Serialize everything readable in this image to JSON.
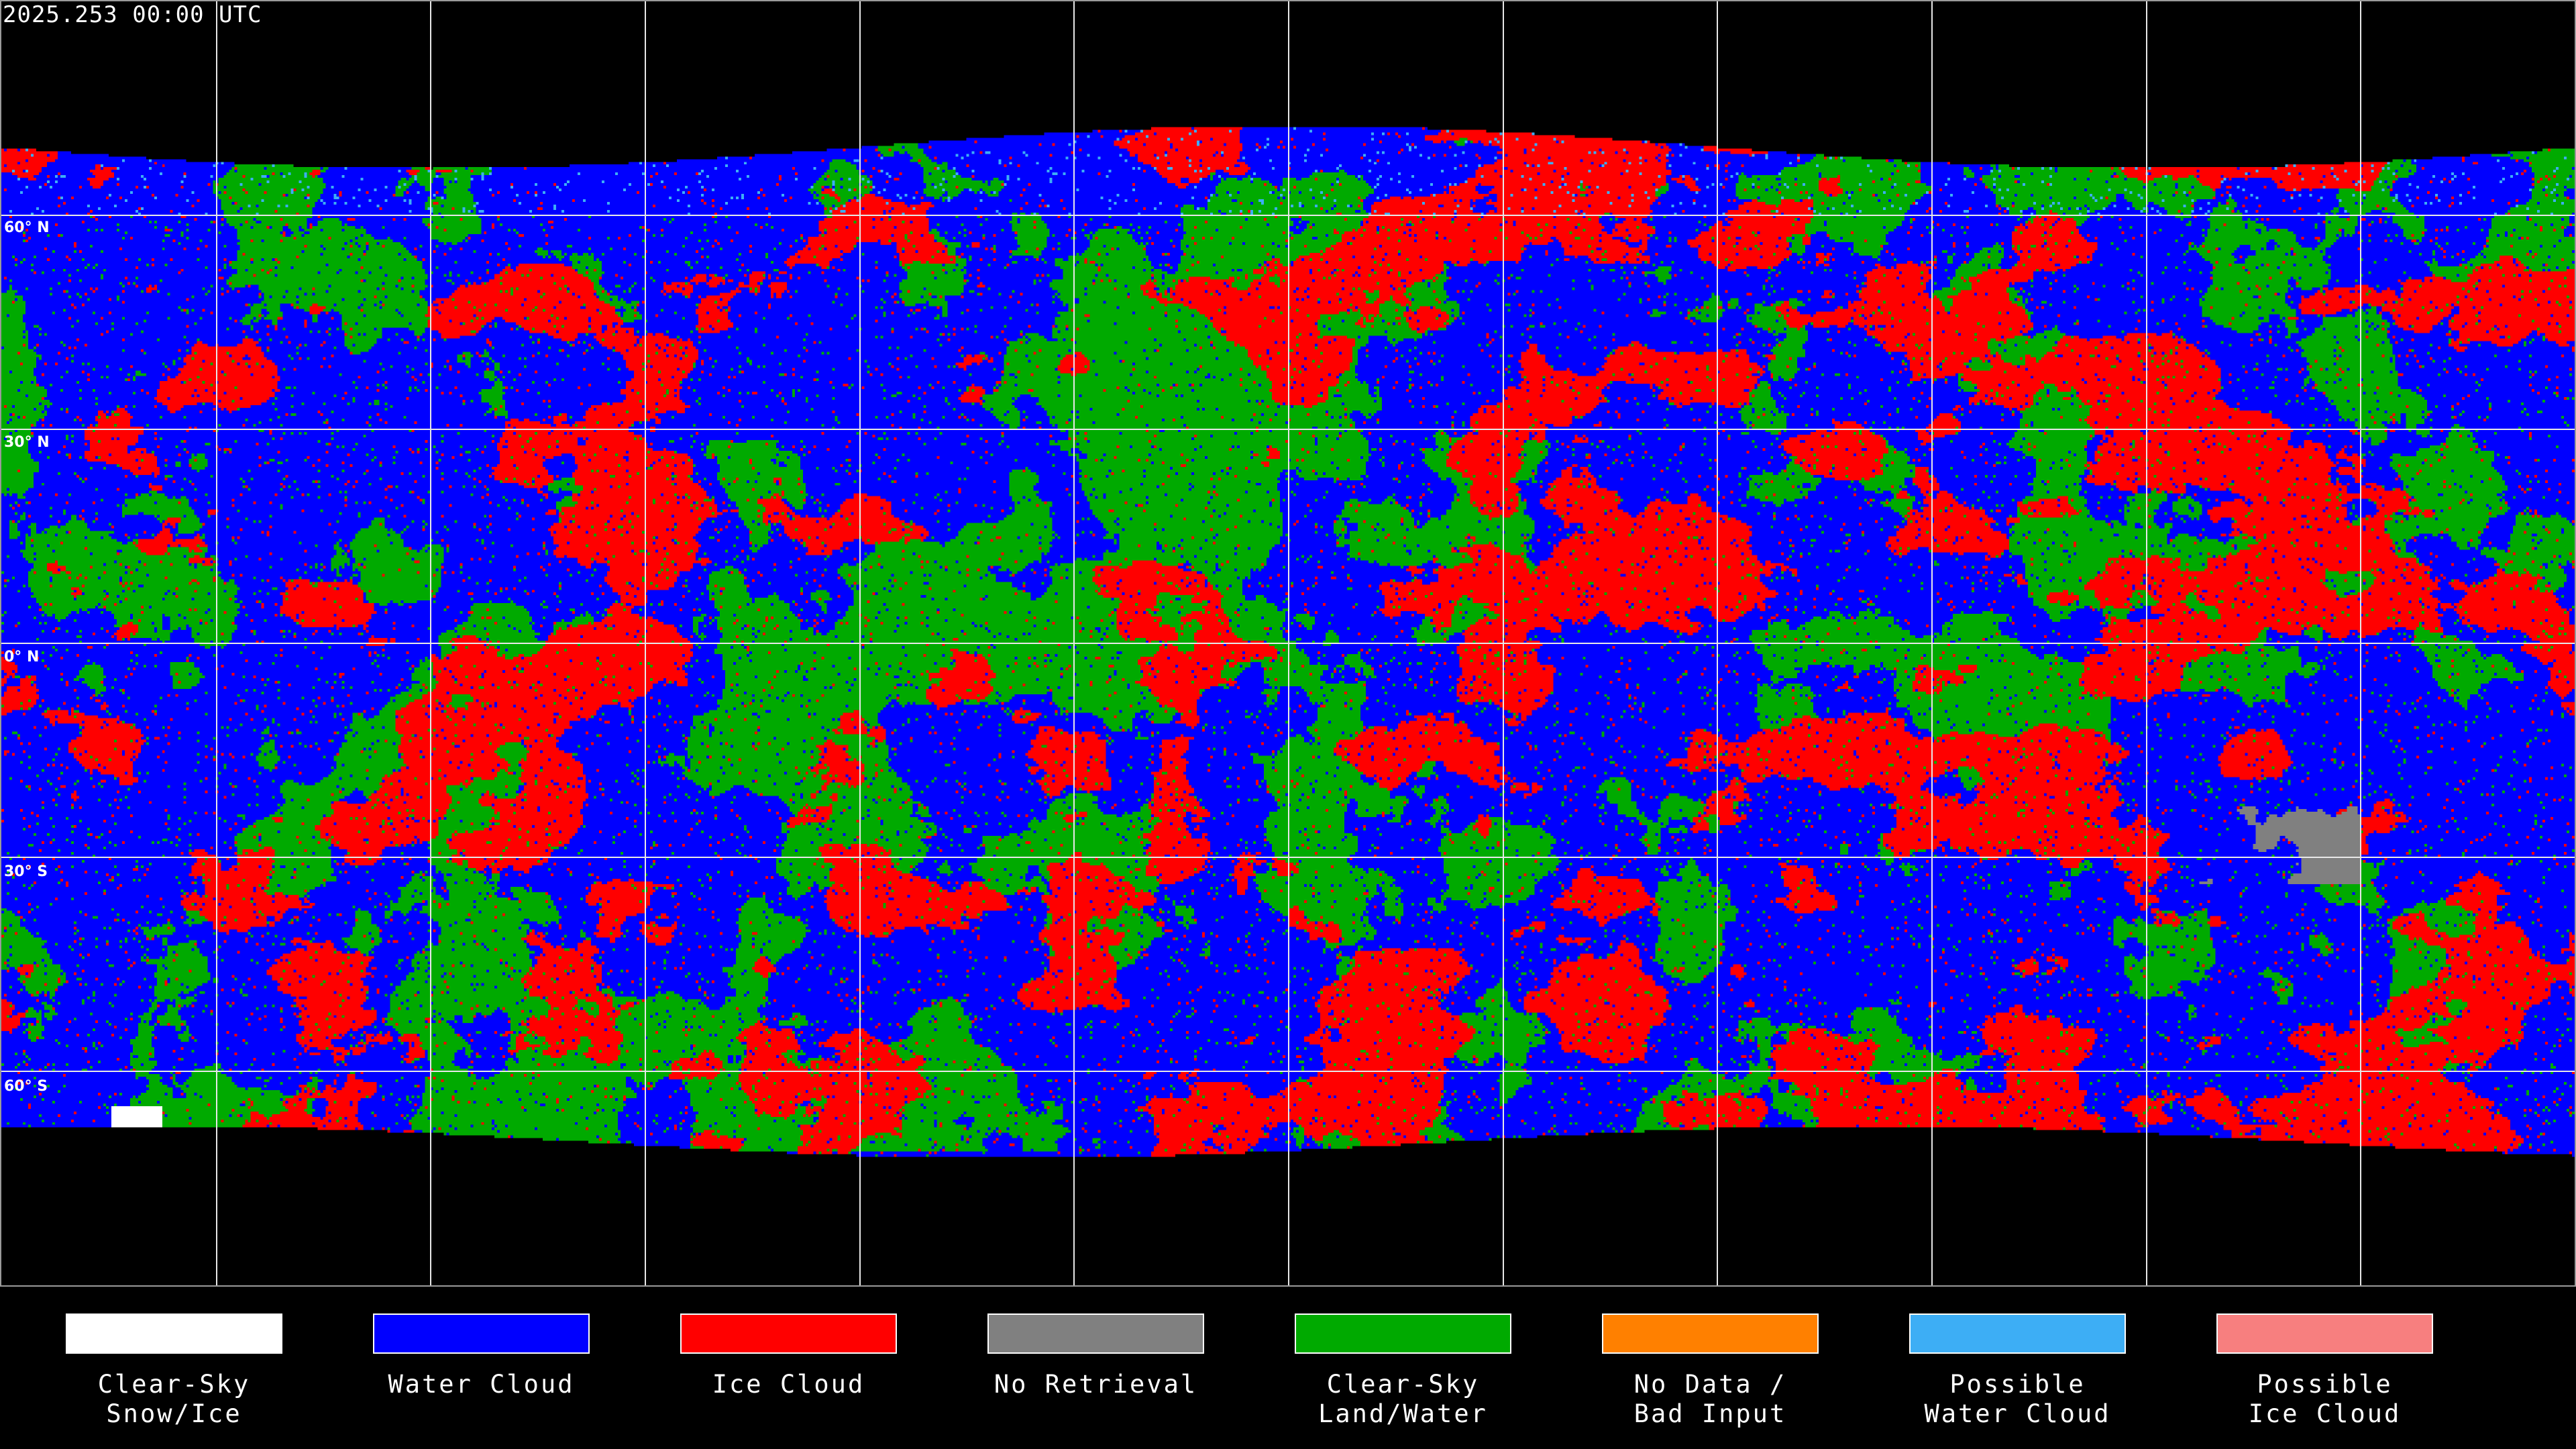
{
  "title": "2025.253 00:00 UTC",
  "map": {
    "latitude_labels": [
      "60° N",
      "30° N",
      "0° N",
      "30° S",
      "60° S"
    ],
    "gridline_spacing_degrees": 30
  },
  "legend": [
    {
      "label": "Clear-Sky\nSnow/Ice",
      "color": "#ffffff"
    },
    {
      "label": "Water Cloud",
      "color": "#0000ff"
    },
    {
      "label": "Ice Cloud",
      "color": "#ff0000"
    },
    {
      "label": "No Retrieval",
      "color": "#808080"
    },
    {
      "label": "Clear-Sky\nLand/Water",
      "color": "#00aa00"
    },
    {
      "label": "No Data /\nBad Input",
      "color": "#ff8000"
    },
    {
      "label": "Possible\nWater Cloud",
      "color": "#3daef5"
    },
    {
      "label": "Possible\nIce Cloud",
      "color": "#f77f7f"
    }
  ]
}
